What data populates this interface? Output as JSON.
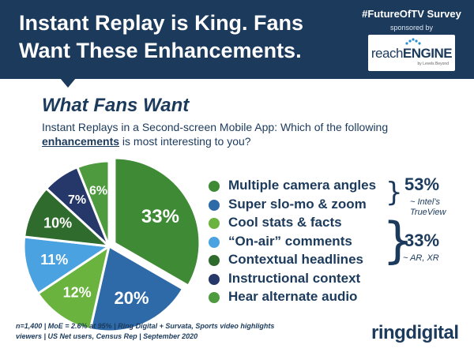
{
  "header": {
    "headline": "Instant Replay is King. Fans Want These Enhancements.",
    "survey_tag": "#FutureOfTV Survey",
    "sponsor_label": "sponsored by",
    "sponsor_logo_a": "reach",
    "sponsor_logo_b": "ENGINE",
    "sponsor_sub": "by Levels Beyond"
  },
  "section_title": "What Fans Want",
  "question": {
    "line1": "Instant Replays in a Second-screen Mobile App: Which of the following",
    "emph": "enhancements",
    "line2_rest": " is most interesting to you?"
  },
  "colors": {
    "dark_green": "#2f6b2c",
    "mid_green": "#3f8a35",
    "light_green": "#69b33e",
    "blue": "#2f6aa8",
    "light_blue": "#4aa2e0",
    "navy": "#26386a",
    "text_navy": "#1b3a5c"
  },
  "chart_data": {
    "type": "pie",
    "title": "What Fans Want",
    "slices": [
      {
        "label": "Multiple camera angles",
        "value": 33,
        "color": "#3f8a35",
        "data_label": "33%"
      },
      {
        "label": "Super slo-mo & zoom",
        "value": 20,
        "color": "#2f6aa8",
        "data_label": "20%"
      },
      {
        "label": "Cool stats & facts",
        "value": 12,
        "color": "#69b33e",
        "data_label": "12%"
      },
      {
        "label": "“On-air” comments",
        "value": 11,
        "color": "#4aa2e0",
        "data_label": "11%"
      },
      {
        "label": "Contextual headlines",
        "value": 10,
        "color": "#2f6b2c",
        "data_label": "10%"
      },
      {
        "label": "Instructional context",
        "value": 7,
        "color": "#26386a",
        "data_label": "7%"
      },
      {
        "label": "Hear alternate audio",
        "value": 6,
        "color": "#4e9a3e",
        "data_label": "6%"
      }
    ],
    "legend_placement": "right"
  },
  "groups": {
    "group1_pct": "53%",
    "group1_note_line1": "~ Intel’s",
    "group1_note_line2": "TrueView",
    "group2_pct": "33%",
    "group2_note": "~ AR, XR"
  },
  "footnote": "n=1,400 | MoE = 2.6% at 95% | Ring Digital + Survata, Sports video highlights viewers | US Net users, Census Rep | September 2020",
  "brand": "ringdigital"
}
